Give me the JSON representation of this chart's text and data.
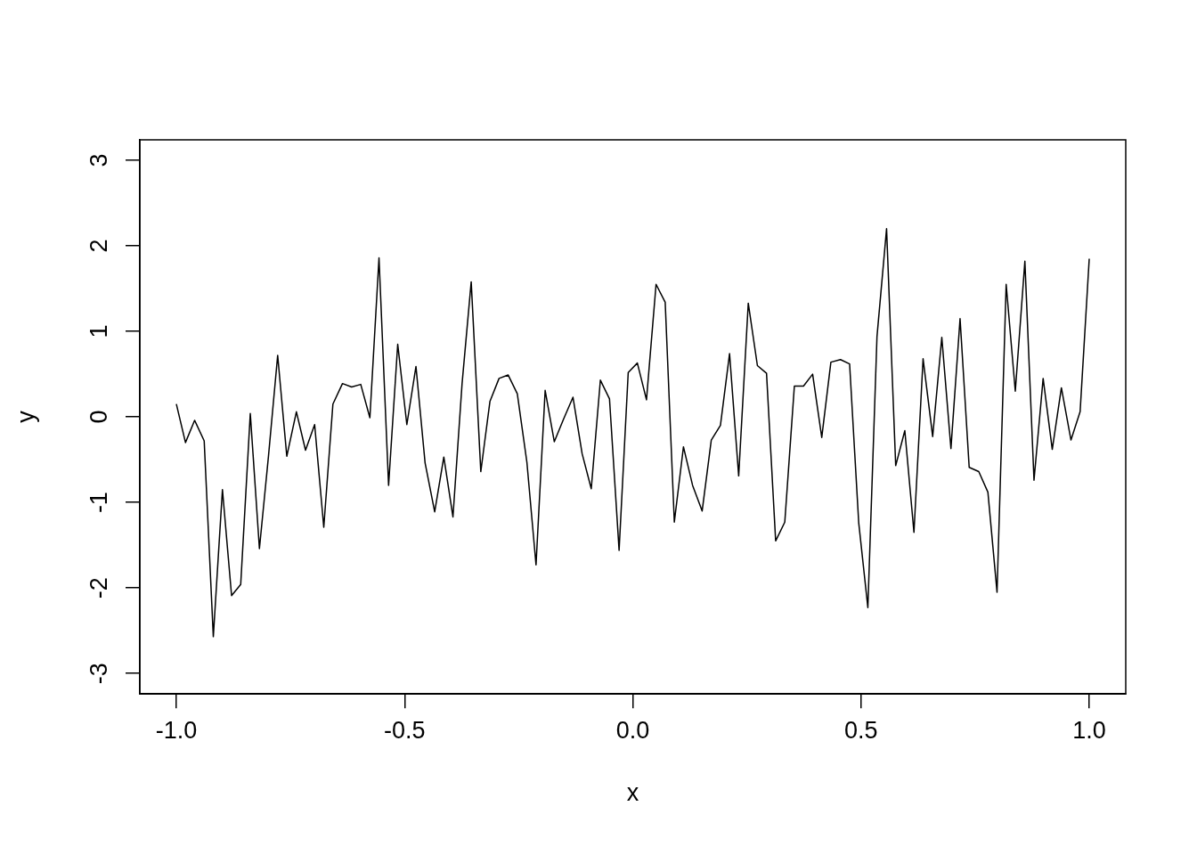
{
  "chart_data": {
    "type": "line",
    "xlabel": "x",
    "ylabel": "y",
    "x": [
      -1,
      -0.98,
      -0.96,
      -0.939,
      -0.919,
      -0.899,
      -0.879,
      -0.859,
      -0.838,
      -0.818,
      -0.798,
      -0.778,
      -0.758,
      -0.737,
      -0.717,
      -0.697,
      -0.677,
      -0.657,
      -0.636,
      -0.616,
      -0.596,
      -0.576,
      -0.556,
      -0.535,
      -0.515,
      -0.495,
      -0.475,
      -0.455,
      -0.434,
      -0.414,
      -0.394,
      -0.374,
      -0.354,
      -0.333,
      -0.313,
      -0.293,
      -0.273,
      -0.253,
      -0.232,
      -0.212,
      -0.192,
      -0.172,
      -0.152,
      -0.131,
      -0.111,
      -0.091,
      -0.071,
      -0.051,
      -0.03,
      -0.01,
      0.01,
      0.03,
      0.051,
      0.071,
      0.091,
      0.111,
      0.131,
      0.152,
      0.172,
      0.192,
      0.212,
      0.232,
      0.253,
      0.273,
      0.293,
      0.313,
      0.333,
      0.354,
      0.374,
      0.394,
      0.414,
      0.434,
      0.455,
      0.475,
      0.495,
      0.515,
      0.535,
      0.556,
      0.576,
      0.596,
      0.616,
      0.636,
      0.657,
      0.677,
      0.697,
      0.717,
      0.737,
      0.758,
      0.778,
      0.798,
      0.818,
      0.838,
      0.859,
      0.879,
      0.899,
      0.919,
      0.939,
      0.96,
      0.98,
      1
    ],
    "series": [
      {
        "color": "#000000",
        "values": [
          0.15,
          -0.3,
          -0.04,
          -0.28,
          -2.57,
          -0.85,
          -2.09,
          -1.96,
          0.04,
          -1.54,
          -0.45,
          0.72,
          -0.46,
          0.06,
          -0.39,
          -0.09,
          -1.29,
          0.15,
          0.39,
          0.35,
          0.38,
          -0.01,
          1.86,
          -0.8,
          0.85,
          -0.09,
          0.59,
          -0.54,
          -1.11,
          -0.47,
          -1.17,
          0.39,
          1.58,
          -0.64,
          0.18,
          0.45,
          0.49,
          0.27,
          -0.53,
          -1.73,
          0.31,
          -0.29,
          -0.03,
          0.23,
          -0.43,
          -0.84,
          0.43,
          0.21,
          -1.56,
          0.52,
          0.63,
          0.2,
          1.55,
          1.34,
          -1.23,
          -0.35,
          -0.8,
          -1.1,
          -0.27,
          -0.1,
          0.74,
          -0.69,
          1.33,
          0.6,
          0.51,
          -1.45,
          -1.23,
          0.36,
          0.36,
          0.5,
          -0.24,
          0.64,
          0.67,
          0.62,
          -1.24,
          -2.23,
          0.94,
          2.2,
          -0.57,
          -0.16,
          -1.35,
          0.68,
          -0.23,
          0.93,
          -0.37,
          1.15,
          -0.59,
          -0.64,
          -0.88,
          -2.05,
          1.55,
          0.3,
          1.82,
          -0.74,
          0.45,
          -0.38,
          0.34,
          -0.27,
          0.06,
          1.85
        ]
      }
    ],
    "xlim": [
      -1.08,
      1.08
    ],
    "xticks": [
      {
        "value": -1,
        "label": "-1.0"
      },
      {
        "value": -0.5,
        "label": "-0.5"
      },
      {
        "value": 0,
        "label": "0.0"
      },
      {
        "value": 0.5,
        "label": "0.5"
      },
      {
        "value": 1,
        "label": "1.0"
      }
    ],
    "ylim": [
      -3.24,
      3.24
    ],
    "yticks": [
      -3,
      -2,
      -1,
      0,
      1,
      2,
      3
    ],
    "grid": false,
    "legend": false,
    "marker": "none",
    "line_style": "solid"
  }
}
